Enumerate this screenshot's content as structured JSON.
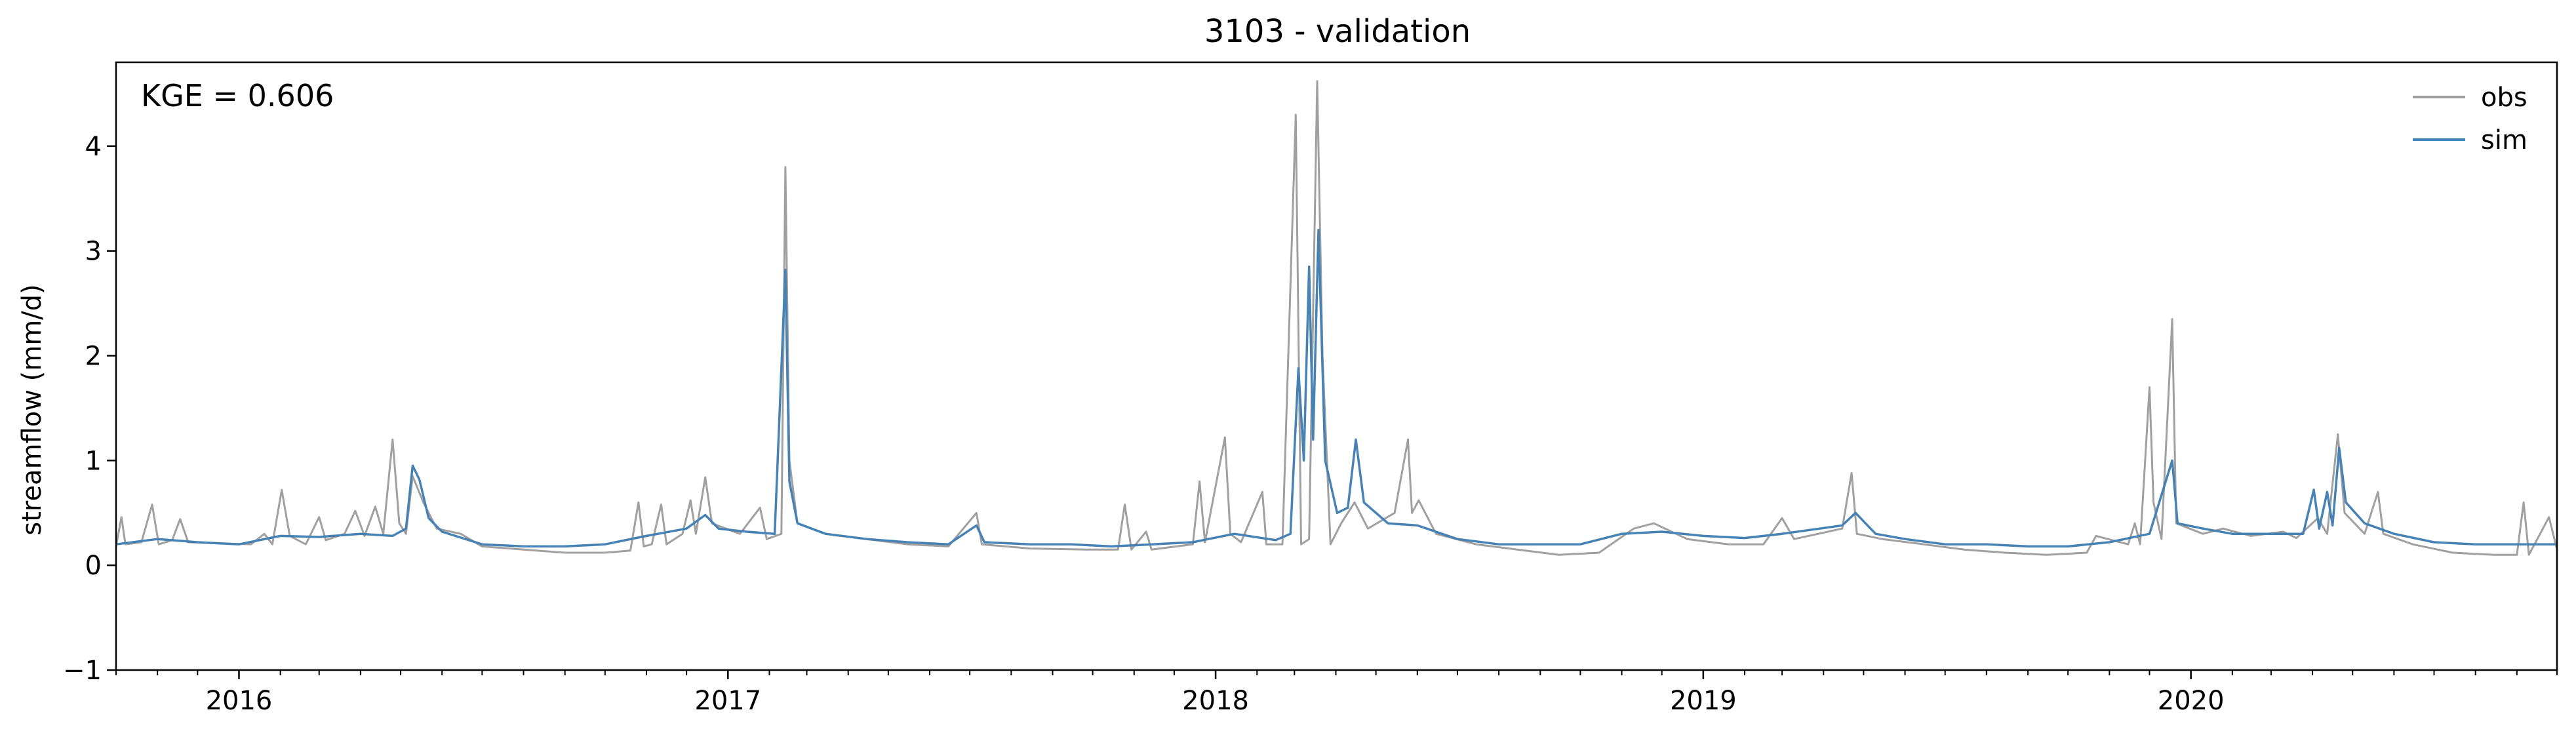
{
  "chart_data": {
    "type": "line",
    "title": "3103 - validation",
    "xlabel": "",
    "ylabel": "streamflow (mm/d)",
    "annotation": "KGE = 0.606",
    "xlim": [
      "2015-10-01",
      "2020-10-01"
    ],
    "ylim": [
      -1,
      4.8
    ],
    "yticks": [
      -1,
      0,
      1,
      2,
      3,
      4
    ],
    "yticklabels": [
      "−1",
      "0",
      "1",
      "2",
      "3",
      "4"
    ],
    "xticks": [
      "2016-01-01",
      "2017-01-01",
      "2018-01-01",
      "2019-01-01",
      "2020-01-01"
    ],
    "xticklabels": [
      "2016",
      "2017",
      "2018",
      "2019",
      "2020"
    ],
    "grid": false,
    "legend_position": "top-right",
    "series": [
      {
        "name": "obs",
        "color": "#a0a0a0",
        "points": [
          [
            "2015-10-01",
            0.18
          ],
          [
            "2015-10-05",
            0.46
          ],
          [
            "2015-10-08",
            0.2
          ],
          [
            "2015-10-20",
            0.22
          ],
          [
            "2015-10-28",
            0.58
          ],
          [
            "2015-11-02",
            0.2
          ],
          [
            "2015-11-12",
            0.24
          ],
          [
            "2015-11-18",
            0.44
          ],
          [
            "2015-11-24",
            0.22
          ],
          [
            "2015-12-15",
            0.21
          ],
          [
            "2016-01-10",
            0.2
          ],
          [
            "2016-01-20",
            0.3
          ],
          [
            "2016-01-26",
            0.2
          ],
          [
            "2016-02-02",
            0.72
          ],
          [
            "2016-02-08",
            0.28
          ],
          [
            "2016-02-20",
            0.2
          ],
          [
            "2016-03-01",
            0.46
          ],
          [
            "2016-03-06",
            0.24
          ],
          [
            "2016-03-20",
            0.3
          ],
          [
            "2016-03-28",
            0.52
          ],
          [
            "2016-04-04",
            0.28
          ],
          [
            "2016-04-12",
            0.56
          ],
          [
            "2016-04-18",
            0.3
          ],
          [
            "2016-04-25",
            1.2
          ],
          [
            "2016-04-30",
            0.4
          ],
          [
            "2016-05-05",
            0.3
          ],
          [
            "2016-05-10",
            0.85
          ],
          [
            "2016-05-18",
            0.6
          ],
          [
            "2016-05-28",
            0.35
          ],
          [
            "2016-06-15",
            0.3
          ],
          [
            "2016-07-01",
            0.18
          ],
          [
            "2016-08-01",
            0.15
          ],
          [
            "2016-09-01",
            0.12
          ],
          [
            "2016-10-01",
            0.12
          ],
          [
            "2016-10-20",
            0.14
          ],
          [
            "2016-10-26",
            0.6
          ],
          [
            "2016-10-30",
            0.18
          ],
          [
            "2016-11-05",
            0.2
          ],
          [
            "2016-11-12",
            0.58
          ],
          [
            "2016-11-16",
            0.2
          ],
          [
            "2016-11-28",
            0.3
          ],
          [
            "2016-12-04",
            0.62
          ],
          [
            "2016-12-08",
            0.3
          ],
          [
            "2016-12-15",
            0.84
          ],
          [
            "2016-12-20",
            0.4
          ],
          [
            "2017-01-10",
            0.3
          ],
          [
            "2017-01-25",
            0.55
          ],
          [
            "2017-01-30",
            0.25
          ],
          [
            "2017-02-10",
            0.3
          ],
          [
            "2017-02-13",
            3.8
          ],
          [
            "2017-02-16",
            1.0
          ],
          [
            "2017-02-22",
            0.4
          ],
          [
            "2017-03-15",
            0.3
          ],
          [
            "2017-04-15",
            0.25
          ],
          [
            "2017-05-15",
            0.2
          ],
          [
            "2017-06-15",
            0.18
          ],
          [
            "2017-07-06",
            0.5
          ],
          [
            "2017-07-10",
            0.2
          ],
          [
            "2017-08-15",
            0.16
          ],
          [
            "2017-09-25",
            0.15
          ],
          [
            "2017-10-20",
            0.15
          ],
          [
            "2017-10-25",
            0.58
          ],
          [
            "2017-10-30",
            0.15
          ],
          [
            "2017-11-10",
            0.32
          ],
          [
            "2017-11-14",
            0.15
          ],
          [
            "2017-12-15",
            0.2
          ],
          [
            "2017-12-20",
            0.8
          ],
          [
            "2017-12-24",
            0.22
          ],
          [
            "2018-01-08",
            1.22
          ],
          [
            "2018-01-12",
            0.3
          ],
          [
            "2018-01-20",
            0.22
          ],
          [
            "2018-02-05",
            0.7
          ],
          [
            "2018-02-08",
            0.2
          ],
          [
            "2018-02-20",
            0.2
          ],
          [
            "2018-03-02",
            4.3
          ],
          [
            "2018-03-06",
            0.2
          ],
          [
            "2018-03-12",
            0.25
          ],
          [
            "2018-03-18",
            4.62
          ],
          [
            "2018-03-22",
            2.0
          ],
          [
            "2018-03-28",
            0.2
          ],
          [
            "2018-04-05",
            0.4
          ],
          [
            "2018-04-15",
            0.6
          ],
          [
            "2018-04-25",
            0.35
          ],
          [
            "2018-05-15",
            0.5
          ],
          [
            "2018-05-25",
            1.2
          ],
          [
            "2018-05-28",
            0.5
          ],
          [
            "2018-06-02",
            0.62
          ],
          [
            "2018-06-15",
            0.3
          ],
          [
            "2018-07-15",
            0.2
          ],
          [
            "2018-08-15",
            0.15
          ],
          [
            "2018-09-15",
            0.1
          ],
          [
            "2018-10-15",
            0.12
          ],
          [
            "2018-11-10",
            0.35
          ],
          [
            "2018-11-25",
            0.4
          ],
          [
            "2018-12-20",
            0.25
          ],
          [
            "2019-01-20",
            0.2
          ],
          [
            "2019-02-15",
            0.2
          ],
          [
            "2019-03-01",
            0.45
          ],
          [
            "2019-03-10",
            0.25
          ],
          [
            "2019-04-15",
            0.35
          ],
          [
            "2019-04-22",
            0.88
          ],
          [
            "2019-04-26",
            0.3
          ],
          [
            "2019-05-15",
            0.25
          ],
          [
            "2019-06-15",
            0.2
          ],
          [
            "2019-07-15",
            0.15
          ],
          [
            "2019-08-15",
            0.12
          ],
          [
            "2019-09-15",
            0.1
          ],
          [
            "2019-10-15",
            0.12
          ],
          [
            "2019-10-22",
            0.28
          ],
          [
            "2019-11-15",
            0.2
          ],
          [
            "2019-11-20",
            0.4
          ],
          [
            "2019-11-24",
            0.2
          ],
          [
            "2019-12-01",
            1.7
          ],
          [
            "2019-12-04",
            0.6
          ],
          [
            "2019-12-10",
            0.25
          ],
          [
            "2019-12-18",
            2.35
          ],
          [
            "2019-12-21",
            0.4
          ],
          [
            "2020-01-10",
            0.3
          ],
          [
            "2020-01-25",
            0.35
          ],
          [
            "2020-02-15",
            0.28
          ],
          [
            "2020-03-10",
            0.32
          ],
          [
            "2020-03-20",
            0.26
          ],
          [
            "2020-04-05",
            0.45
          ],
          [
            "2020-04-12",
            0.3
          ],
          [
            "2020-04-20",
            1.25
          ],
          [
            "2020-04-25",
            0.5
          ],
          [
            "2020-05-10",
            0.3
          ],
          [
            "2020-05-20",
            0.7
          ],
          [
            "2020-05-24",
            0.3
          ],
          [
            "2020-06-15",
            0.2
          ],
          [
            "2020-07-15",
            0.12
          ],
          [
            "2020-08-15",
            0.1
          ],
          [
            "2020-09-01",
            0.1
          ],
          [
            "2020-09-06",
            0.6
          ],
          [
            "2020-09-10",
            0.1
          ],
          [
            "2020-09-25",
            0.46
          ],
          [
            "2020-10-01",
            0.15
          ]
        ]
      },
      {
        "name": "sim",
        "color": "#4682b4",
        "points": [
          [
            "2015-10-01",
            0.2
          ],
          [
            "2015-11-01",
            0.25
          ],
          [
            "2015-12-01",
            0.22
          ],
          [
            "2016-01-01",
            0.2
          ],
          [
            "2016-02-01",
            0.28
          ],
          [
            "2016-03-01",
            0.27
          ],
          [
            "2016-04-01",
            0.3
          ],
          [
            "2016-04-25",
            0.28
          ],
          [
            "2016-05-05",
            0.35
          ],
          [
            "2016-05-10",
            0.95
          ],
          [
            "2016-05-15",
            0.82
          ],
          [
            "2016-05-22",
            0.45
          ],
          [
            "2016-06-01",
            0.32
          ],
          [
            "2016-07-01",
            0.2
          ],
          [
            "2016-08-01",
            0.18
          ],
          [
            "2016-09-01",
            0.18
          ],
          [
            "2016-10-01",
            0.2
          ],
          [
            "2016-11-01",
            0.28
          ],
          [
            "2016-12-01",
            0.35
          ],
          [
            "2016-12-15",
            0.48
          ],
          [
            "2016-12-25",
            0.35
          ],
          [
            "2017-01-15",
            0.32
          ],
          [
            "2017-02-05",
            0.3
          ],
          [
            "2017-02-13",
            2.82
          ],
          [
            "2017-02-16",
            0.8
          ],
          [
            "2017-02-22",
            0.4
          ],
          [
            "2017-03-15",
            0.3
          ],
          [
            "2017-04-15",
            0.25
          ],
          [
            "2017-05-15",
            0.22
          ],
          [
            "2017-06-15",
            0.2
          ],
          [
            "2017-07-06",
            0.38
          ],
          [
            "2017-07-12",
            0.22
          ],
          [
            "2017-08-15",
            0.2
          ],
          [
            "2017-09-15",
            0.2
          ],
          [
            "2017-10-15",
            0.18
          ],
          [
            "2017-11-15",
            0.2
          ],
          [
            "2017-12-15",
            0.22
          ],
          [
            "2018-01-15",
            0.3
          ],
          [
            "2018-02-15",
            0.24
          ],
          [
            "2018-02-26",
            0.3
          ],
          [
            "2018-03-04",
            1.88
          ],
          [
            "2018-03-08",
            1.0
          ],
          [
            "2018-03-12",
            2.85
          ],
          [
            "2018-03-15",
            1.2
          ],
          [
            "2018-03-19",
            3.2
          ],
          [
            "2018-03-24",
            1.0
          ],
          [
            "2018-04-02",
            0.5
          ],
          [
            "2018-04-10",
            0.55
          ],
          [
            "2018-04-16",
            1.2
          ],
          [
            "2018-04-22",
            0.6
          ],
          [
            "2018-05-10",
            0.4
          ],
          [
            "2018-06-01",
            0.38
          ],
          [
            "2018-07-01",
            0.25
          ],
          [
            "2018-08-01",
            0.2
          ],
          [
            "2018-09-01",
            0.2
          ],
          [
            "2018-10-01",
            0.2
          ],
          [
            "2018-11-01",
            0.3
          ],
          [
            "2018-12-01",
            0.32
          ],
          [
            "2019-01-01",
            0.28
          ],
          [
            "2019-02-01",
            0.26
          ],
          [
            "2019-03-01",
            0.3
          ],
          [
            "2019-04-15",
            0.38
          ],
          [
            "2019-04-25",
            0.5
          ],
          [
            "2019-05-10",
            0.3
          ],
          [
            "2019-06-01",
            0.25
          ],
          [
            "2019-07-01",
            0.2
          ],
          [
            "2019-08-01",
            0.2
          ],
          [
            "2019-09-01",
            0.18
          ],
          [
            "2019-10-01",
            0.18
          ],
          [
            "2019-11-01",
            0.22
          ],
          [
            "2019-12-01",
            0.3
          ],
          [
            "2019-12-18",
            1.0
          ],
          [
            "2019-12-22",
            0.4
          ],
          [
            "2020-01-10",
            0.35
          ],
          [
            "2020-02-01",
            0.3
          ],
          [
            "2020-03-01",
            0.3
          ],
          [
            "2020-03-25",
            0.3
          ],
          [
            "2020-04-02",
            0.72
          ],
          [
            "2020-04-06",
            0.35
          ],
          [
            "2020-04-12",
            0.7
          ],
          [
            "2020-04-16",
            0.38
          ],
          [
            "2020-04-21",
            1.12
          ],
          [
            "2020-04-26",
            0.6
          ],
          [
            "2020-05-10",
            0.4
          ],
          [
            "2020-06-01",
            0.3
          ],
          [
            "2020-07-01",
            0.22
          ],
          [
            "2020-08-01",
            0.2
          ],
          [
            "2020-09-01",
            0.2
          ],
          [
            "2020-10-01",
            0.2
          ]
        ]
      }
    ]
  }
}
